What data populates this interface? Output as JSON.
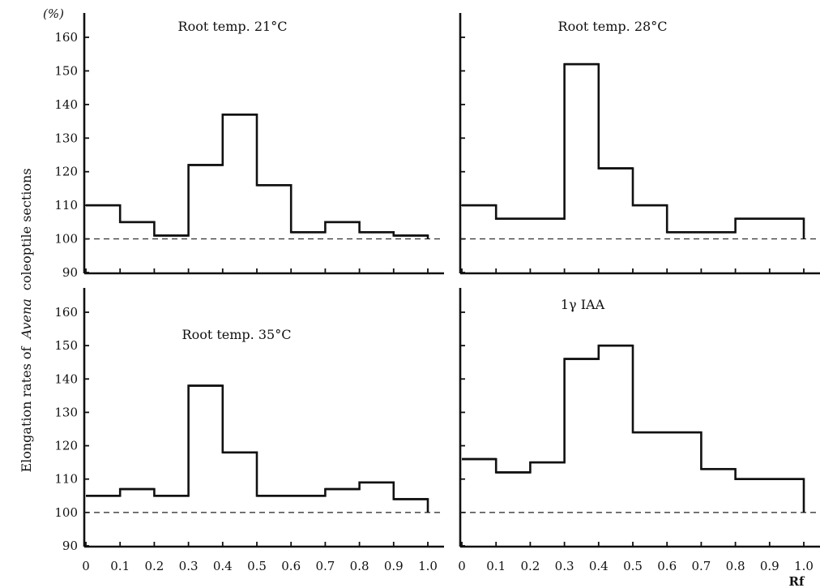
{
  "figure": {
    "ylabel_prefix": "Elongation rates of",
    "ylabel_italic": "Avena",
    "ylabel_suffix": "coleoptile sections",
    "y_unit": "(%)",
    "xlabel": "Rf"
  },
  "colors": {
    "line": "#111111",
    "baseline": "#222222",
    "background": "#ffffff"
  },
  "chart_data": [
    {
      "type": "histogram-step",
      "title": "Root temp.  21°C",
      "x_edges": [
        0,
        0.1,
        0.2,
        0.3,
        0.4,
        0.5,
        0.6,
        0.7,
        0.8,
        0.9,
        1.0
      ],
      "values": [
        110,
        105,
        101,
        122,
        137,
        116,
        102,
        105,
        102,
        101
      ],
      "reference": 100,
      "xlim": [
        0,
        1.0
      ],
      "ylim": [
        90,
        160
      ],
      "y_ticks": [
        90,
        100,
        110,
        120,
        130,
        140,
        150,
        160
      ],
      "y_tick_labels": [
        "90",
        "100",
        "110",
        "120",
        "130",
        "140",
        "150",
        "160"
      ],
      "x_ticks": [
        0,
        0.1,
        0.2,
        0.3,
        0.4,
        0.5,
        0.6,
        0.7,
        0.8,
        0.9,
        1.0
      ],
      "x_tick_labels": [],
      "grid": false
    },
    {
      "type": "histogram-step",
      "title": "Root temp.  28°C",
      "x_edges": [
        0,
        0.1,
        0.2,
        0.3,
        0.4,
        0.5,
        0.6,
        0.7,
        0.8,
        0.9,
        1.0
      ],
      "values": [
        110,
        106,
        106,
        152,
        121,
        110,
        102,
        102,
        106,
        106
      ],
      "reference": 100,
      "xlim": [
        0,
        1.0
      ],
      "ylim": [
        90,
        160
      ],
      "y_ticks": [
        90,
        100,
        110,
        120,
        130,
        140,
        150,
        160
      ],
      "y_tick_labels": [],
      "x_ticks": [
        0,
        0.1,
        0.2,
        0.3,
        0.4,
        0.5,
        0.6,
        0.7,
        0.8,
        0.9,
        1.0
      ],
      "x_tick_labels": [],
      "grid": false
    },
    {
      "type": "histogram-step",
      "title": "Root temp.  35°C",
      "x_edges": [
        0,
        0.1,
        0.2,
        0.3,
        0.4,
        0.5,
        0.6,
        0.7,
        0.8,
        0.9,
        1.0
      ],
      "values": [
        105,
        107,
        105,
        138,
        118,
        105,
        105,
        107,
        109,
        104
      ],
      "reference": 100,
      "xlim": [
        0,
        1.0
      ],
      "ylim": [
        90,
        160
      ],
      "y_ticks": [
        90,
        100,
        110,
        120,
        130,
        140,
        150,
        160
      ],
      "y_tick_labels": [
        "90",
        "100",
        "110",
        "120",
        "130",
        "140",
        "150",
        "160"
      ],
      "x_ticks": [
        0,
        0.1,
        0.2,
        0.3,
        0.4,
        0.5,
        0.6,
        0.7,
        0.8,
        0.9,
        1.0
      ],
      "x_tick_labels": [
        "0",
        "0.1",
        "0.2",
        "0.3",
        "0.4",
        "0.5",
        "0.6",
        "0.7",
        "0.8",
        "0.9",
        "1.0"
      ],
      "grid": false
    },
    {
      "type": "histogram-step",
      "title": "1γ IAA",
      "x_edges": [
        0,
        0.1,
        0.2,
        0.3,
        0.4,
        0.5,
        0.6,
        0.7,
        0.8,
        0.9,
        1.0
      ],
      "values": [
        116,
        112,
        115,
        146,
        150,
        124,
        124,
        113,
        110,
        110
      ],
      "reference": 100,
      "xlim": [
        0,
        1.0
      ],
      "ylim": [
        90,
        160
      ],
      "y_ticks": [
        90,
        100,
        110,
        120,
        130,
        140,
        150,
        160
      ],
      "y_tick_labels": [],
      "x_ticks": [
        0,
        0.1,
        0.2,
        0.3,
        0.4,
        0.5,
        0.6,
        0.7,
        0.8,
        0.9,
        1.0
      ],
      "x_tick_labels": [
        "0",
        "0.1",
        "0.2",
        "0.3",
        "0.4",
        "0.5",
        "0.6",
        "0.7",
        "0.8",
        "0.9",
        "1.0"
      ],
      "grid": false
    }
  ]
}
